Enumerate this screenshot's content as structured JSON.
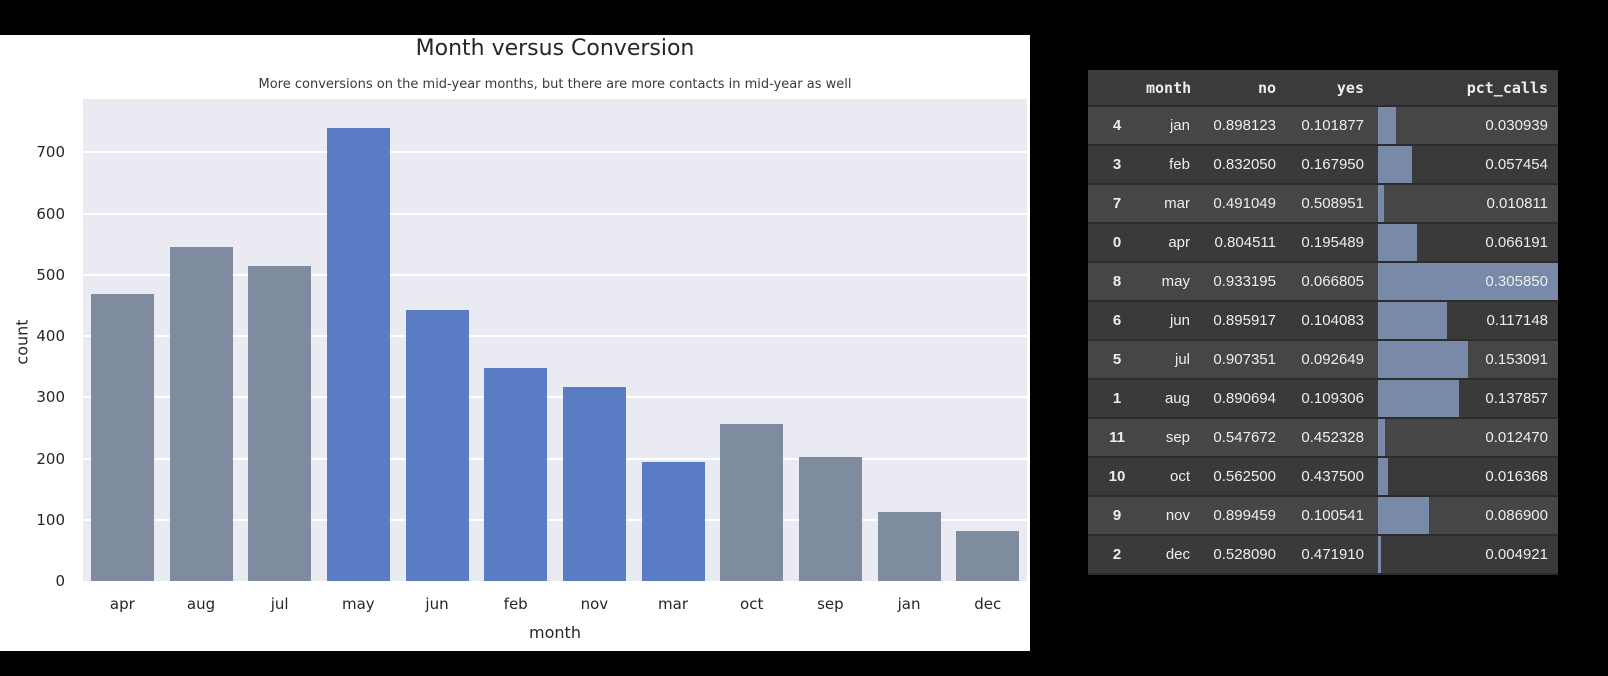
{
  "style": {
    "page_bg": "#000000",
    "figure_bg": "#ffffff",
    "plot_bg": "#eaeaf2",
    "bar_blue": "#5a7cc4",
    "bar_gray": "#7f8b9e",
    "table_bar_color": "#7889aa",
    "table_row_light": "#464646",
    "table_row_dark": "#3a3a3a",
    "chart_text": "#262626"
  },
  "chart_data": [
    {
      "type": "bar",
      "title": "Month versus Conversion",
      "subtitle": "More conversions on the mid-year months, but there are more contacts in mid-year as well",
      "xlabel": "month",
      "ylabel": "count",
      "categories": [
        "apr",
        "aug",
        "jul",
        "may",
        "jun",
        "feb",
        "nov",
        "mar",
        "oct",
        "sep",
        "jan",
        "dec"
      ],
      "values": [
        468,
        545,
        514,
        740,
        442,
        348,
        316,
        195,
        256,
        203,
        112,
        81
      ],
      "bar_colors": [
        "gray",
        "gray",
        "gray",
        "blue",
        "blue",
        "blue",
        "blue",
        "blue",
        "gray",
        "gray",
        "gray",
        "gray"
      ],
      "yticks": [
        0,
        100,
        200,
        300,
        400,
        500,
        600,
        700
      ],
      "ylim": [
        0,
        787
      ],
      "grid": true,
      "legend": false
    },
    {
      "type": "table",
      "columns": [
        "",
        "month",
        "no",
        "yes",
        "pct_calls"
      ],
      "bar_column": "pct_calls",
      "bar_max": 0.30585,
      "rows": [
        {
          "index": "4",
          "month": "jan",
          "no": "0.898123",
          "yes": "0.101877",
          "pct_calls": "0.030939"
        },
        {
          "index": "3",
          "month": "feb",
          "no": "0.832050",
          "yes": "0.167950",
          "pct_calls": "0.057454"
        },
        {
          "index": "7",
          "month": "mar",
          "no": "0.491049",
          "yes": "0.508951",
          "pct_calls": "0.010811"
        },
        {
          "index": "0",
          "month": "apr",
          "no": "0.804511",
          "yes": "0.195489",
          "pct_calls": "0.066191"
        },
        {
          "index": "8",
          "month": "may",
          "no": "0.933195",
          "yes": "0.066805",
          "pct_calls": "0.305850"
        },
        {
          "index": "6",
          "month": "jun",
          "no": "0.895917",
          "yes": "0.104083",
          "pct_calls": "0.117148"
        },
        {
          "index": "5",
          "month": "jul",
          "no": "0.907351",
          "yes": "0.092649",
          "pct_calls": "0.153091"
        },
        {
          "index": "1",
          "month": "aug",
          "no": "0.890694",
          "yes": "0.109306",
          "pct_calls": "0.137857"
        },
        {
          "index": "11",
          "month": "sep",
          "no": "0.547672",
          "yes": "0.452328",
          "pct_calls": "0.012470"
        },
        {
          "index": "10",
          "month": "oct",
          "no": "0.562500",
          "yes": "0.437500",
          "pct_calls": "0.016368"
        },
        {
          "index": "9",
          "month": "nov",
          "no": "0.899459",
          "yes": "0.100541",
          "pct_calls": "0.086900"
        },
        {
          "index": "2",
          "month": "dec",
          "no": "0.528090",
          "yes": "0.471910",
          "pct_calls": "0.004921"
        }
      ]
    }
  ]
}
